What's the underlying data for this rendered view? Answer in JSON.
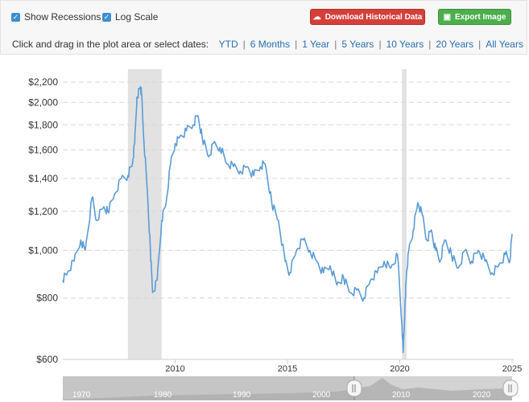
{
  "controls": {
    "show_recessions_label": "Show Recessions",
    "log_scale_label": "Log Scale",
    "download_label": "Download Historical Data",
    "export_label": "Export Image",
    "range_prompt": "Click and drag in the plot area or select dates:",
    "ranges": [
      "YTD",
      "6 Months",
      "1 Year",
      "5 Years",
      "10 Years",
      "20 Years",
      "All Years"
    ]
  },
  "icons": {
    "download": "cloud-download-icon",
    "export": "image-icon",
    "checkbox": "check-icon"
  },
  "colors": {
    "line": "#5b9bd5",
    "recession": "#e2e2e2",
    "download_button": "#d43f3a",
    "export_button": "#4cae4c",
    "link": "#2a6fb0"
  },
  "chart_data": {
    "type": "line",
    "y_scale": "log",
    "ylim": [
      600,
      2250
    ],
    "xlim": [
      2005.0,
      2025.0
    ],
    "y_ticks": [
      600,
      800,
      1000,
      1200,
      1400,
      1600,
      1800,
      2000,
      2200
    ],
    "y_tick_labels": [
      "$600",
      "$800",
      "$1,000",
      "$1,200",
      "$1,400",
      "$1,600",
      "$1,800",
      "$2,000",
      "$2,200"
    ],
    "x_ticks": [
      2010,
      2015,
      2020,
      2025
    ],
    "x_tick_labels": [
      "2010",
      "2015",
      "2020",
      "2025"
    ],
    "grid": "horizontal dashed",
    "recessions": [
      [
        2007.9,
        2009.4
      ],
      [
        2020.1,
        2020.3
      ]
    ],
    "series": [
      {
        "x": [
          2005.0,
          2005.2,
          2005.5,
          2005.8,
          2006.0,
          2006.3,
          2006.5,
          2006.8,
          2007.0,
          2007.3,
          2007.6,
          2007.9,
          2008.1,
          2008.2,
          2008.3,
          2008.45,
          2008.5,
          2008.6,
          2008.75,
          2008.9,
          2009.0,
          2009.2,
          2009.4,
          2009.6,
          2009.8,
          2010.0,
          2010.2,
          2010.5,
          2010.8,
          2011.0,
          2011.2,
          2011.5,
          2011.7,
          2012.0,
          2012.3,
          2012.6,
          2012.9,
          2013.2,
          2013.5,
          2013.8,
          2014.0,
          2014.3,
          2014.6,
          2014.9,
          2015.1,
          2015.4,
          2015.7,
          2016.0,
          2016.3,
          2016.6,
          2016.9,
          2017.2,
          2017.5,
          2017.8,
          2018.1,
          2018.4,
          2018.7,
          2019.0,
          2019.3,
          2019.6,
          2019.9,
          2020.1,
          2020.15,
          2020.25,
          2020.3,
          2020.4,
          2020.6,
          2020.8,
          2021.0,
          2021.2,
          2021.4,
          2021.6,
          2021.8,
          2022.0,
          2022.3,
          2022.6,
          2022.9,
          2023.2,
          2023.5,
          2023.8,
          2024.1,
          2024.4,
          2024.7,
          2024.9,
          2025.0
        ],
        "values": [
          870,
          900,
          950,
          1050,
          1000,
          1280,
          1150,
          1220,
          1200,
          1300,
          1400,
          1420,
          1500,
          1650,
          2050,
          2150,
          2100,
          1700,
          1350,
          1000,
          820,
          870,
          1150,
          1250,
          1500,
          1650,
          1700,
          1750,
          1800,
          1880,
          1700,
          1550,
          1650,
          1620,
          1500,
          1480,
          1450,
          1480,
          1420,
          1480,
          1500,
          1250,
          1150,
          950,
          900,
          1000,
          1050,
          1000,
          950,
          900,
          930,
          850,
          880,
          820,
          830,
          800,
          870,
          900,
          950,
          920,
          980,
          700,
          620,
          800,
          900,
          1000,
          1100,
          1250,
          1180,
          1050,
          1100,
          1000,
          950,
          1050,
          980,
          920,
          1000,
          950,
          1000,
          950,
          900,
          930,
          980,
          950,
          1080
        ]
      }
    ]
  },
  "navigator": {
    "labels": [
      "1970",
      "1980",
      "1990",
      "2000",
      "2010",
      "2020"
    ]
  }
}
